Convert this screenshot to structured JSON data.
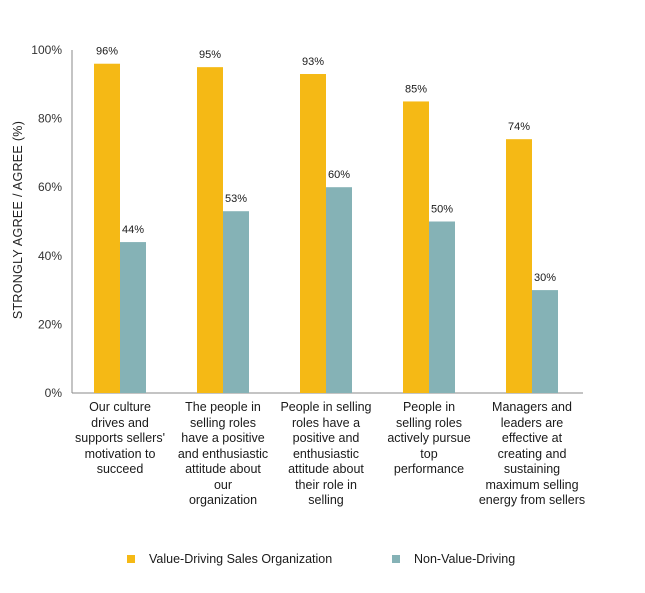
{
  "chart_data": {
    "type": "bar",
    "ylabel": "STRONGLY AGREE / AGREE (%)",
    "ylim": [
      0,
      100
    ],
    "yticks": [
      0,
      20,
      40,
      60,
      80,
      100
    ],
    "ytick_labels": [
      "0%",
      "20%",
      "40%",
      "60%",
      "80%",
      "100%"
    ],
    "categories": [
      "Our culture drives and supports sellers' motivation to succeed",
      "The people in selling roles have a positive and enthusiastic attitude about our organization",
      "People in selling roles have a positive and enthusiastic attitude about their role in selling",
      "People in selling roles actively pursue top performance",
      "Managers and leaders are effective at creating and sustaining maximum selling energy from sellers"
    ],
    "category_lines": [
      [
        "Our culture",
        "drives and",
        "supports sellers'",
        "motivation to",
        "succeed"
      ],
      [
        "The people in",
        "selling roles",
        "have a positive",
        "and enthusiastic",
        "attitude about",
        "our",
        "organization"
      ],
      [
        "People in selling",
        "roles have a",
        "positive and",
        "enthusiastic",
        "attitude about",
        "their role in",
        "selling"
      ],
      [
        "People in",
        "selling roles",
        "actively pursue",
        "top",
        "performance"
      ],
      [
        "Managers and",
        "leaders are",
        "effective at",
        "creating and",
        "sustaining",
        "maximum selling",
        "energy from sellers"
      ]
    ],
    "series": [
      {
        "name": "Value-Driving Sales Organization",
        "color": "#F5B915",
        "values": [
          96,
          95,
          93,
          85,
          74
        ],
        "labels": [
          "96%",
          "95%",
          "93%",
          "85%",
          "74%"
        ]
      },
      {
        "name": "Non-Value-Driving",
        "color": "#85B2B6",
        "values": [
          44,
          53,
          60,
          50,
          30
        ],
        "labels": [
          "44%",
          "53%",
          "60%",
          "50%",
          "30%"
        ]
      }
    ],
    "legend_position": "bottom",
    "grid": false
  }
}
